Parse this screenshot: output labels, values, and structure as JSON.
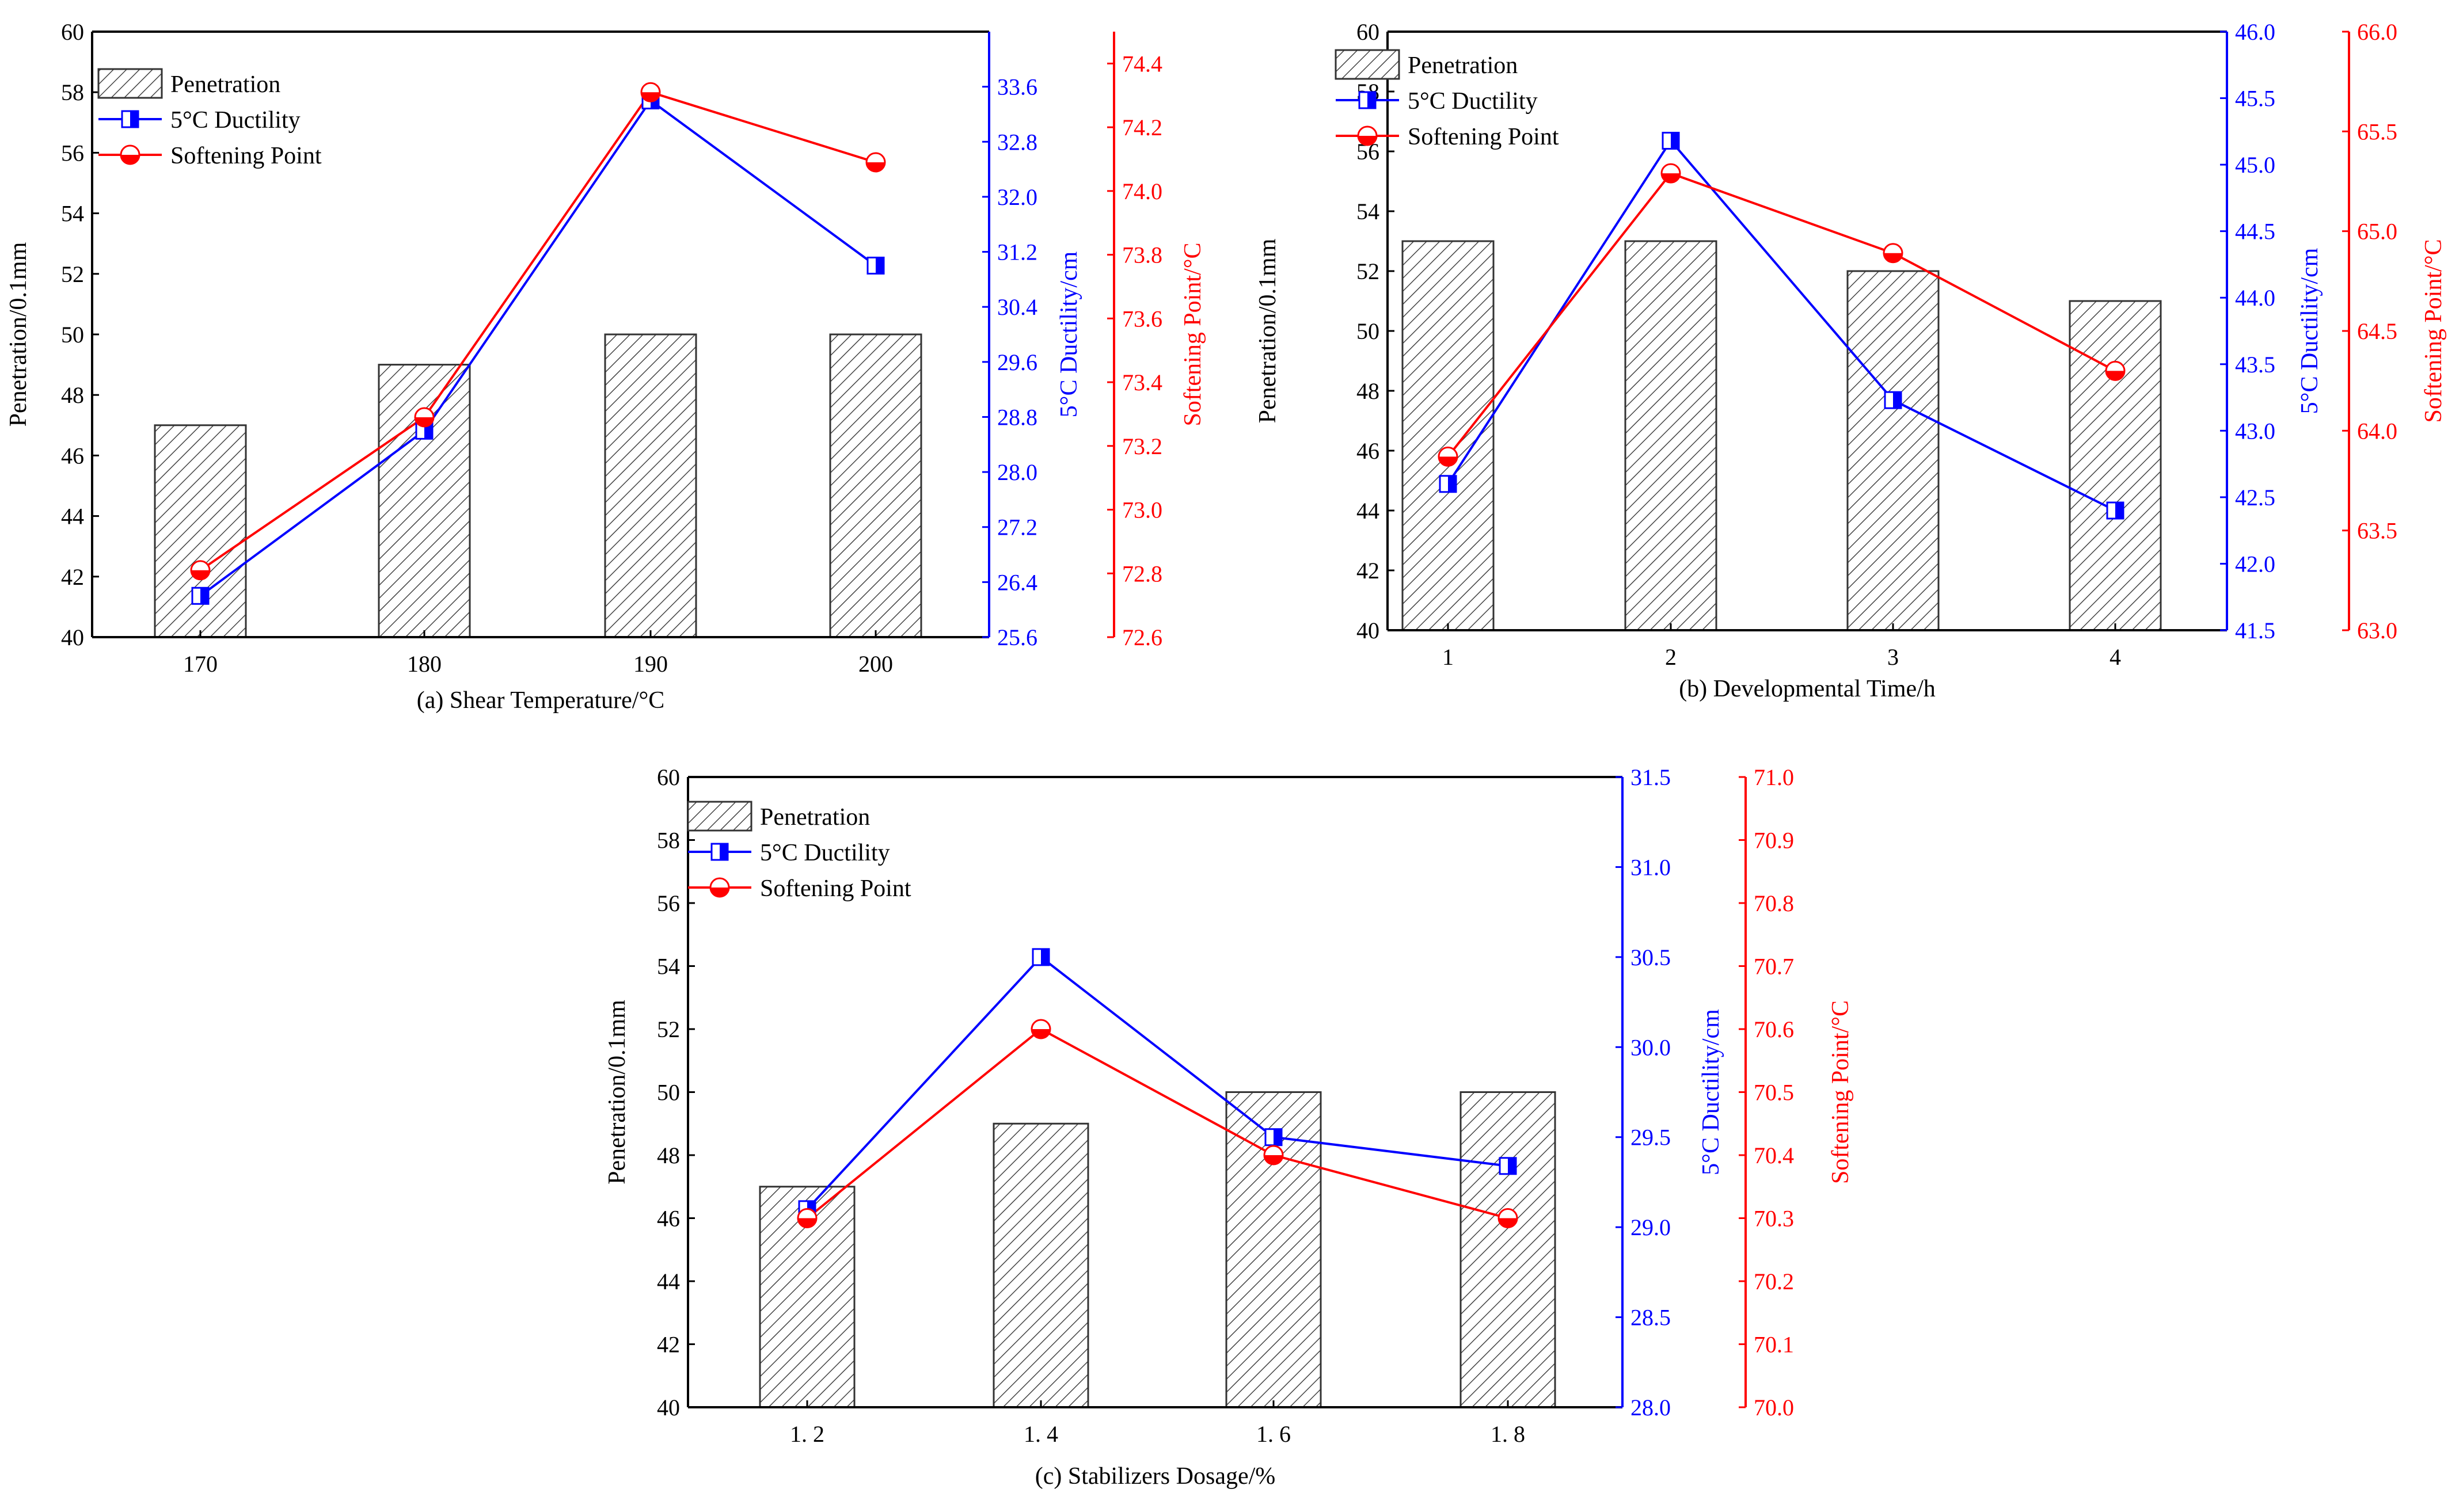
{
  "colors": {
    "penetration": "#333333",
    "ductility": "#0000ff",
    "softening": "#ff0000",
    "axis": "#000000"
  },
  "legend": {
    "penetration": "Penetration",
    "ductility": "5°C Ductility",
    "softening": "Softening Point"
  },
  "chart_data": [
    {
      "type": "bar",
      "caption": "(a) Shear Temperature/°C",
      "categories": [
        "170",
        "180",
        "190",
        "200"
      ],
      "left_axis": {
        "label": "Penetration/0.1mm",
        "ylim": [
          40,
          60
        ],
        "ticks": [
          "40",
          "42",
          "44",
          "46",
          "48",
          "50",
          "52",
          "54",
          "56",
          "58",
          "60"
        ]
      },
      "right1_axis": {
        "label": "5°C Ductility/cm",
        "ylim": [
          25.6,
          34.4
        ],
        "ticks": [
          "25.6",
          "26.4",
          "27.2",
          "28.0",
          "28.8",
          "29.6",
          "30.4",
          "31.2",
          "32.0",
          "32.8",
          "33.6"
        ]
      },
      "right2_axis": {
        "label": "Softening Point/°C",
        "ylim": [
          72.6,
          74.5
        ],
        "ticks": [
          "72.6",
          "72.8",
          "73.0",
          "73.2",
          "73.4",
          "73.6",
          "73.8",
          "74.0",
          "74.2",
          "74.4"
        ]
      },
      "series": [
        {
          "name": "Penetration",
          "type": "bar",
          "axis": "left",
          "values": [
            47,
            49,
            50,
            50
          ]
        },
        {
          "name": "5°C Ductility",
          "type": "line",
          "axis": "right1",
          "values": [
            26.2,
            28.6,
            33.4,
            31.0
          ]
        },
        {
          "name": "Softening Point",
          "type": "line",
          "axis": "right2",
          "values": [
            72.81,
            73.29,
            74.31,
            74.09
          ]
        }
      ]
    },
    {
      "type": "bar",
      "caption": "(b) Developmental Time/h",
      "categories": [
        "1",
        "2",
        "3",
        "4"
      ],
      "left_axis": {
        "label": "Penetration/0.1mm",
        "ylim": [
          40,
          60
        ],
        "ticks": [
          "40",
          "42",
          "44",
          "46",
          "48",
          "50",
          "52",
          "54",
          "56",
          "58",
          "60"
        ]
      },
      "right1_axis": {
        "label": "5°C Ductility/cm",
        "ylim": [
          41.5,
          46.0
        ],
        "ticks": [
          "41.5",
          "42.0",
          "42.5",
          "43.0",
          "43.5",
          "44.0",
          "44.5",
          "45.0",
          "45.5",
          "46.0"
        ]
      },
      "right2_axis": {
        "label": "Softening Point/°C",
        "ylim": [
          63.0,
          66.0
        ],
        "ticks": [
          "63.0",
          "63.5",
          "64.0",
          "64.5",
          "65.0",
          "65.5",
          "66.0"
        ]
      },
      "series": [
        {
          "name": "Penetration",
          "type": "bar",
          "axis": "left",
          "values": [
            53,
            53,
            52,
            51
          ]
        },
        {
          "name": "5°C Ductility",
          "type": "line",
          "axis": "right1",
          "values": [
            42.6,
            45.18,
            43.23,
            42.4
          ]
        },
        {
          "name": "Softening Point",
          "type": "line",
          "axis": "right2",
          "values": [
            63.87,
            65.29,
            64.89,
            64.3
          ]
        }
      ]
    },
    {
      "type": "bar",
      "caption": "(c) Stabilizers Dosage/%",
      "categories": [
        "1. 2",
        "1. 4",
        "1. 6",
        "1. 8"
      ],
      "left_axis": {
        "label": "Penetration/0.1mm",
        "ylim": [
          40,
          60
        ],
        "ticks": [
          "40",
          "42",
          "44",
          "46",
          "48",
          "50",
          "52",
          "54",
          "56",
          "58",
          "60"
        ]
      },
      "right1_axis": {
        "label": "5°C Ductility/cm",
        "ylim": [
          28.0,
          31.5
        ],
        "ticks": [
          "28.0",
          "28.5",
          "29.0",
          "29.5",
          "30.0",
          "30.5",
          "31.0",
          "31.5"
        ]
      },
      "right2_axis": {
        "label": "Softening Point/°C",
        "ylim": [
          70.0,
          71.0
        ],
        "ticks": [
          "70.0",
          "70.1",
          "70.2",
          "70.3",
          "70.4",
          "70.5",
          "70.6",
          "70.7",
          "70.8",
          "70.9",
          "71.0"
        ]
      },
      "series": [
        {
          "name": "Penetration",
          "type": "bar",
          "axis": "left",
          "values": [
            47,
            49,
            50,
            50
          ]
        },
        {
          "name": "5°C Ductility",
          "type": "line",
          "axis": "right1",
          "values": [
            29.1,
            30.5,
            29.5,
            29.34
          ]
        },
        {
          "name": "Softening Point",
          "type": "line",
          "axis": "right2",
          "values": [
            70.3,
            70.6,
            70.4,
            70.3
          ]
        }
      ]
    }
  ]
}
